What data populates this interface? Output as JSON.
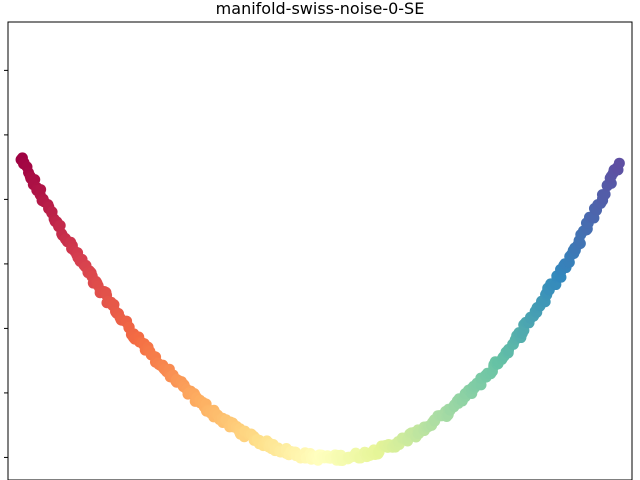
{
  "chart_data": {
    "type": "scatter",
    "title": "manifold-swiss-noise-0-SE",
    "xlabel": "",
    "ylabel": "",
    "xlim": [
      -1.0,
      1.0
    ],
    "ylim": [
      -0.07,
      1.35
    ],
    "grid": false,
    "legend": "none",
    "x_tick_count": 6,
    "y_tick_count": 7,
    "tick_labels_visible": false,
    "colormap": "Spectral",
    "curve_description": "Parabolic U-shaped embedding of the swiss roll (noise 0); color encodes the manifold parameter t from red (start, left arm) through yellow (bottom) to blue (end, right arm).",
    "series": [
      {
        "name": "embedding",
        "x_range": [
          -0.96,
          0.96
        ],
        "equation": "y = x^2 + 0.4*x*(x^2-1)*0.18",
        "num_points": 420,
        "color_stops": [
          "#9e0142",
          "#d53e4f",
          "#f46d43",
          "#fdae61",
          "#fee08b",
          "#ffffbf",
          "#e6f598",
          "#abdda4",
          "#66c2a5",
          "#3288bd",
          "#5e4fa2"
        ]
      }
    ]
  }
}
